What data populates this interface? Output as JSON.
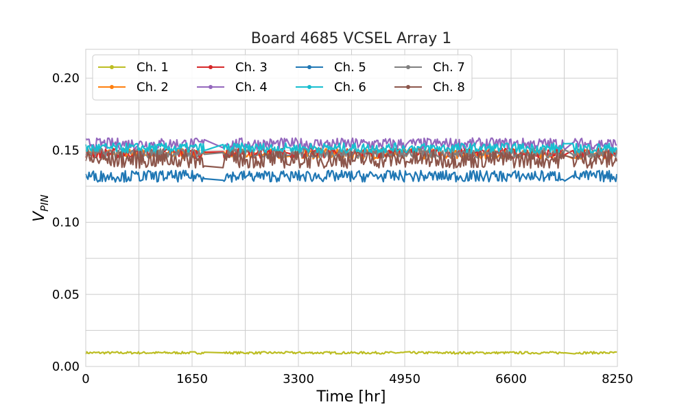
{
  "chart_data": {
    "type": "line",
    "title": "Board 4685 VCSEL Array 1",
    "xlabel": "Time [hr]",
    "ylabel_main": "V",
    "ylabel_sub": "PIN",
    "xlim": [
      0,
      8250
    ],
    "ylim": [
      0,
      0.22
    ],
    "xticks": [
      0,
      1650,
      3300,
      4950,
      6600,
      8250
    ],
    "xtick_labels": [
      "0",
      "1650",
      "3300",
      "4950",
      "6600",
      "8250"
    ],
    "yticks": [
      0.0,
      0.05,
      0.1,
      0.15,
      0.2
    ],
    "ytick_labels": [
      "0.00",
      "0.05",
      "0.10",
      "0.15",
      "0.20"
    ],
    "grid": true,
    "legend_position": "top-left",
    "segments": [
      [
        0,
        1850
      ],
      [
        2130,
        3130
      ],
      [
        3170,
        4990
      ],
      [
        5030,
        7440
      ],
      [
        7560,
        8250
      ]
    ],
    "series": [
      {
        "name": "Ch. 1",
        "color": "#bcbd22",
        "center": 0.0095,
        "halfwidth": 0.0008
      },
      {
        "name": "Ch. 2",
        "color": "#ff7f0e",
        "center": 0.1475,
        "halfwidth": 0.0035
      },
      {
        "name": "Ch. 3",
        "color": "#d62728",
        "center": 0.148,
        "halfwidth": 0.0035
      },
      {
        "name": "Ch. 4",
        "color": "#9467bd",
        "center": 0.1545,
        "halfwidth": 0.004
      },
      {
        "name": "Ch. 5",
        "color": "#1f77b4",
        "center": 0.132,
        "halfwidth": 0.004
      },
      {
        "name": "Ch. 6",
        "color": "#17becf",
        "center": 0.1515,
        "halfwidth": 0.0035
      },
      {
        "name": "Ch. 7",
        "color": "#7f7f7f",
        "center": 0.148,
        "halfwidth": 0.0035
      },
      {
        "name": "Ch. 8",
        "color": "#8c564b",
        "center": 0.1435,
        "halfwidth": 0.006
      }
    ]
  }
}
